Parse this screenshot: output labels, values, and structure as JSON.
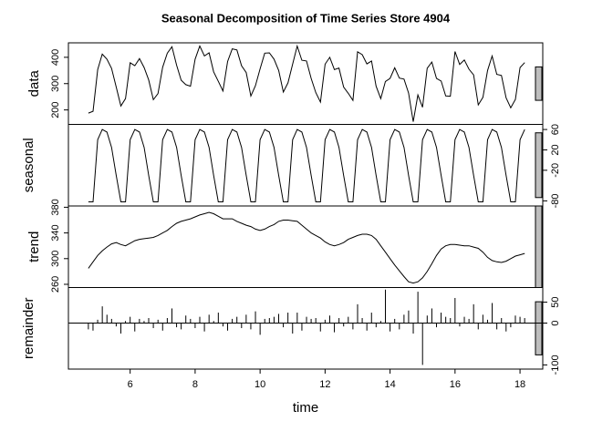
{
  "chart_data": {
    "type": "stl",
    "title": "Seasonal Decomposition of Time Series Store 4904",
    "xlabel": "time",
    "xlim": [
      4.1,
      18.7
    ],
    "xticks": [
      6,
      8,
      10,
      12,
      14,
      16,
      18
    ],
    "x": [
      4.714,
      4.857,
      5,
      5.143,
      5.286,
      5.429,
      5.571,
      5.714,
      5.857,
      6,
      6.143,
      6.286,
      6.429,
      6.571,
      6.714,
      6.857,
      7,
      7.143,
      7.286,
      7.429,
      7.571,
      7.714,
      7.857,
      8,
      8.143,
      8.286,
      8.429,
      8.571,
      8.714,
      8.857,
      9,
      9.143,
      9.286,
      9.429,
      9.571,
      9.714,
      9.857,
      10,
      10.143,
      10.286,
      10.429,
      10.571,
      10.714,
      10.857,
      11,
      11.143,
      11.286,
      11.429,
      11.571,
      11.714,
      11.857,
      12,
      12.143,
      12.286,
      12.429,
      12.571,
      12.714,
      12.857,
      13,
      13.143,
      13.286,
      13.429,
      13.571,
      13.714,
      13.857,
      14,
      14.143,
      14.286,
      14.429,
      14.571,
      14.714,
      14.857,
      15,
      15.143,
      15.286,
      15.429,
      15.571,
      15.714,
      15.857,
      16,
      16.143,
      16.286,
      16.429,
      16.571,
      16.714,
      16.857,
      17,
      17.143,
      17.286,
      17.429,
      17.571,
      17.714,
      17.857,
      18,
      18.143
    ],
    "panels": [
      {
        "name": "data",
        "side": "left",
        "style": "line",
        "ylim": [
          145,
          455
        ],
        "yticks": [
          200,
          300,
          400
        ],
        "values": [
          188,
          195,
          353,
          412,
          393,
          358,
          287,
          215,
          243,
          379,
          368,
          395,
          361,
          314,
          239,
          262,
          362,
          416,
          440,
          370,
          313,
          296,
          290,
          393,
          443,
          405,
          417,
          345,
          309,
          272,
          384,
          432,
          428,
          368,
          342,
          253,
          292,
          356,
          416,
          417,
          393,
          350,
          268,
          303,
          374,
          443,
          389,
          386,
          320,
          266,
          230,
          374,
          400,
          353,
          359,
          287,
          263,
          236,
          421,
          410,
          375,
          386,
          290,
          243,
          308,
          320,
          360,
          321,
          317,
          264,
          155,
          257,
          210,
          358,
          382,
          320,
          310,
          253,
          252,
          422,
          373,
          390,
          355,
          333,
          219,
          248,
          350,
          405,
          335,
          331,
          246,
          208,
          240,
          361,
          380
        ]
      },
      {
        "name": "seasonal",
        "side": "right",
        "style": "line",
        "ylim": [
          -90,
          70
        ],
        "yticks": [
          -80,
          -20,
          20,
          60
        ],
        "values": [
          -82,
          -82,
          40,
          60,
          55,
          25,
          -30,
          -82,
          -82,
          40,
          60,
          55,
          25,
          -30,
          -82,
          -82,
          40,
          60,
          55,
          25,
          -30,
          -82,
          -82,
          40,
          60,
          55,
          25,
          -30,
          -82,
          -82,
          40,
          60,
          55,
          25,
          -30,
          -82,
          -82,
          40,
          60,
          55,
          25,
          -30,
          -82,
          -82,
          40,
          60,
          55,
          25,
          -30,
          -82,
          -82,
          40,
          60,
          55,
          25,
          -30,
          -82,
          -82,
          40,
          60,
          55,
          25,
          -30,
          -82,
          -82,
          40,
          60,
          55,
          25,
          -30,
          -82,
          -82,
          40,
          60,
          55,
          25,
          -30,
          -82,
          -82,
          40,
          60,
          55,
          25,
          -30,
          -82,
          -82,
          40,
          60,
          55,
          25,
          -30,
          -82,
          -82,
          40,
          60
        ]
      },
      {
        "name": "trend",
        "side": "left",
        "style": "line",
        "ylim": [
          255,
          382
        ],
        "yticks": [
          260,
          300,
          340,
          380
        ],
        "values": [
          285,
          295,
          305,
          312,
          318,
          323,
          325,
          322,
          320,
          324,
          328,
          330,
          331,
          332,
          333,
          336,
          340,
          344,
          350,
          355,
          358,
          360,
          362,
          365,
          368,
          370,
          372,
          370,
          366,
          362,
          362,
          362,
          358,
          355,
          352,
          350,
          346,
          344,
          346,
          350,
          353,
          358,
          360,
          360,
          359,
          358,
          352,
          346,
          340,
          336,
          332,
          326,
          322,
          320,
          322,
          325,
          330,
          333,
          336,
          338,
          338,
          336,
          330,
          320,
          310,
          300,
          290,
          281,
          272,
          264,
          262,
          264,
          270,
          280,
          292,
          305,
          315,
          320,
          322,
          322,
          321,
          320,
          320,
          318,
          316,
          310,
          302,
          297,
          295,
          294,
          296,
          300,
          304,
          306,
          308
        ]
      },
      {
        "name": "remainder",
        "side": "right",
        "style": "spike",
        "ylim": [
          -110,
          85
        ],
        "yticks": [
          -100,
          0,
          50
        ],
        "values": [
          -15,
          -18,
          8,
          40,
          20,
          10,
          -8,
          -25,
          5,
          15,
          -20,
          10,
          5,
          12,
          -12,
          8,
          -18,
          12,
          35,
          -10,
          -15,
          18,
          10,
          -12,
          15,
          -20,
          20,
          5,
          25,
          -8,
          -18,
          10,
          15,
          -12,
          20,
          -15,
          28,
          -28,
          10,
          12,
          15,
          22,
          -10,
          25,
          -25,
          25,
          -18,
          15,
          10,
          12,
          -20,
          8,
          18,
          -22,
          12,
          -8,
          15,
          -15,
          45,
          12,
          -18,
          25,
          -10,
          5,
          80,
          -20,
          10,
          -15,
          20,
          30,
          -25,
          75,
          -100,
          18,
          35,
          -10,
          25,
          15,
          12,
          60,
          -8,
          15,
          10,
          45,
          -15,
          20,
          8,
          48,
          -15,
          12,
          -20,
          -10,
          18,
          15,
          12
        ]
      }
    ]
  }
}
